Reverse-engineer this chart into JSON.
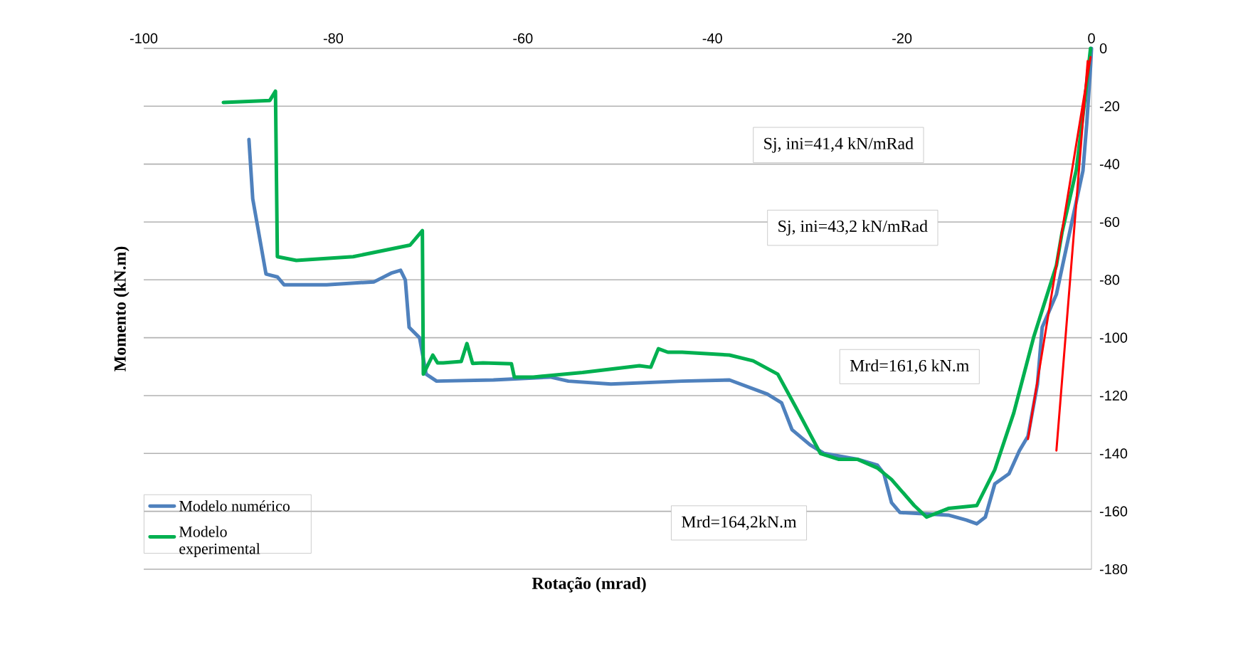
{
  "chart_data": {
    "type": "line",
    "xlabel": "Rotação (mrad)",
    "ylabel": "Momento (kN.m)",
    "xlim": [
      -100,
      0
    ],
    "ylim": [
      -180,
      0
    ],
    "xticks": [
      -100,
      -80,
      -60,
      -40,
      -20,
      0
    ],
    "yticks": [
      -180,
      -160,
      -140,
      -120,
      -100,
      -80,
      -60,
      -40,
      -20,
      0
    ],
    "grid": "y",
    "legend": "bottom left",
    "annotations": [
      "Sj, ini=41,4 kN/mRad",
      "Sj, ini=43,2 kN/mRad",
      "Mrd=161,6 kN.m",
      "Mrd=164,2kN.m"
    ],
    "series": [
      {
        "name": "Modelo numérico",
        "color": "#4f81bd",
        "x": [
          -88.9,
          -88.5,
          -87.1,
          -85.9,
          -85.2,
          -80.7,
          -75.7,
          -73.9,
          -72.9,
          -72.4,
          -72.0,
          -70.9,
          -70.2,
          -69.1,
          -63.1,
          -57.1,
          -55.2,
          -50.7,
          -43.2,
          -38.2,
          -34.2,
          -32.7,
          -31.6,
          -29.7,
          -28.2,
          -24.7,
          -22.6,
          -21.9,
          -21.1,
          -20.2,
          -15.1,
          -13.2,
          -12.1,
          -11.2,
          -10.2,
          -8.7,
          -7.6,
          -6.7,
          -5.7,
          -5.2,
          -3.7,
          -2.2,
          -0.9,
          -0.5,
          -0.1,
          0
        ],
        "values": [
          -31.5,
          -52,
          -78,
          -79,
          -81.7,
          -81.7,
          -80.7,
          -77.7,
          -76.7,
          -80,
          -96.4,
          -100,
          -112.6,
          -115,
          -114.6,
          -113.6,
          -115,
          -116,
          -115,
          -114.6,
          -119.5,
          -122.5,
          -131.8,
          -137,
          -140,
          -142,
          -144,
          -147,
          -157,
          -160.4,
          -161.3,
          -163,
          -164.3,
          -162,
          -150.5,
          -147,
          -139,
          -134,
          -116,
          -96.4,
          -85,
          -62,
          -42.3,
          -26,
          -6.4,
          0
        ]
      },
      {
        "name": "Modelo experimental",
        "color": "#00b050",
        "x": [
          -91.6,
          -86.7,
          -86.1,
          -85.9,
          -83.9,
          -77.9,
          -71.9,
          -70.6,
          -70.5,
          -69.5,
          -69.0,
          -68.4,
          -66.5,
          -65.9,
          -65.3,
          -64.2,
          -61.2,
          -60.9,
          -58.9,
          -53.7,
          -47.7,
          -46.5,
          -45.7,
          -44.7,
          -43.2,
          -38.2,
          -35.7,
          -33.1,
          -31.2,
          -28.6,
          -26.7,
          -24.7,
          -22.6,
          -21.1,
          -18.7,
          -17.4,
          -15.1,
          -12.1,
          -10.2,
          -8.2,
          -6.1,
          -3.7,
          -3.1,
          -1.6,
          -0.7,
          -0.1
        ],
        "values": [
          -18.7,
          -18,
          -14.8,
          -72,
          -73.3,
          -72,
          -68,
          -63,
          -112.6,
          -106,
          -108.7,
          -108.7,
          -108.2,
          -102,
          -108.9,
          -108.7,
          -109,
          -113.6,
          -113.6,
          -112,
          -109.7,
          -110.2,
          -103.8,
          -105,
          -105,
          -106,
          -108,
          -112.6,
          -124,
          -140,
          -142,
          -142,
          -145,
          -149,
          -158,
          -162,
          -159,
          -158,
          -145.6,
          -126,
          -99.8,
          -75,
          -63.5,
          -42,
          -17.7,
          0
        ]
      },
      {
        "color": "#ff0000",
        "x": [
          -0.1,
          -6.7
        ],
        "values": [
          -3,
          -135
        ]
      },
      {
        "color": "#ff0000",
        "x": [
          -0.4,
          -3.7
        ],
        "values": [
          -4.4,
          -139
        ]
      }
    ]
  }
}
